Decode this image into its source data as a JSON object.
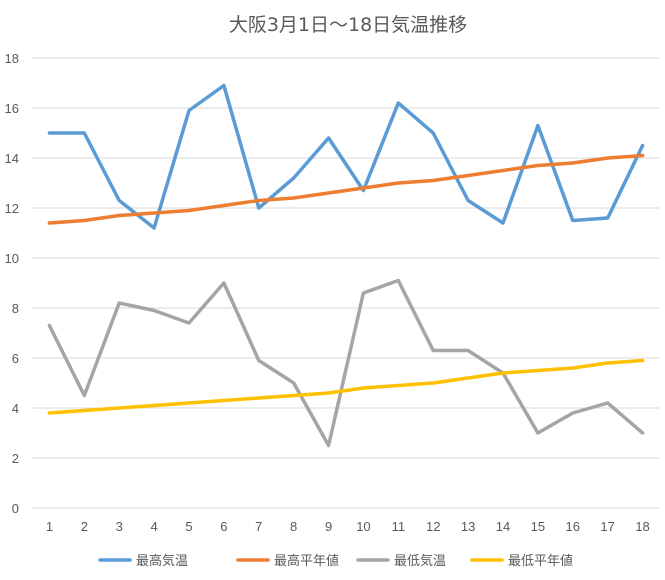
{
  "chart_data": {
    "type": "line",
    "title": "大阪3月1日～18日気温推移",
    "xlabel": "",
    "ylabel": "",
    "categories": [
      "1",
      "2",
      "3",
      "4",
      "5",
      "6",
      "7",
      "8",
      "9",
      "10",
      "11",
      "12",
      "13",
      "14",
      "15",
      "16",
      "17",
      "18"
    ],
    "ylim": [
      0,
      18
    ],
    "yticks": [
      0,
      2,
      4,
      6,
      8,
      10,
      12,
      14,
      16,
      18
    ],
    "grid": true,
    "legend_position": "bottom",
    "series": [
      {
        "name": "最高気温",
        "color": "#5b9bd5",
        "values": [
          15.0,
          15.0,
          12.3,
          11.2,
          15.9,
          16.9,
          12.0,
          13.2,
          14.8,
          12.7,
          16.2,
          15.0,
          12.3,
          11.4,
          15.3,
          11.5,
          11.6,
          14.5
        ]
      },
      {
        "name": "最高平年値",
        "color": "#ed7d31",
        "values": [
          11.4,
          11.5,
          11.7,
          11.8,
          11.9,
          12.1,
          12.3,
          12.4,
          12.6,
          12.8,
          13.0,
          13.1,
          13.3,
          13.5,
          13.7,
          13.8,
          14.0,
          14.1
        ]
      },
      {
        "name": "最低気温",
        "color": "#a5a5a5",
        "values": [
          7.3,
          4.5,
          8.2,
          7.9,
          7.4,
          9.0,
          5.9,
          5.0,
          2.5,
          8.6,
          9.1,
          6.3,
          6.3,
          5.4,
          3.0,
          3.8,
          4.2,
          3.0
        ]
      },
      {
        "name": "最低平年値",
        "color": "#ffc000",
        "values": [
          3.8,
          3.9,
          4.0,
          4.1,
          4.2,
          4.3,
          4.4,
          4.5,
          4.6,
          4.8,
          4.9,
          5.0,
          5.2,
          5.4,
          5.5,
          5.6,
          5.8,
          5.9
        ]
      }
    ]
  }
}
